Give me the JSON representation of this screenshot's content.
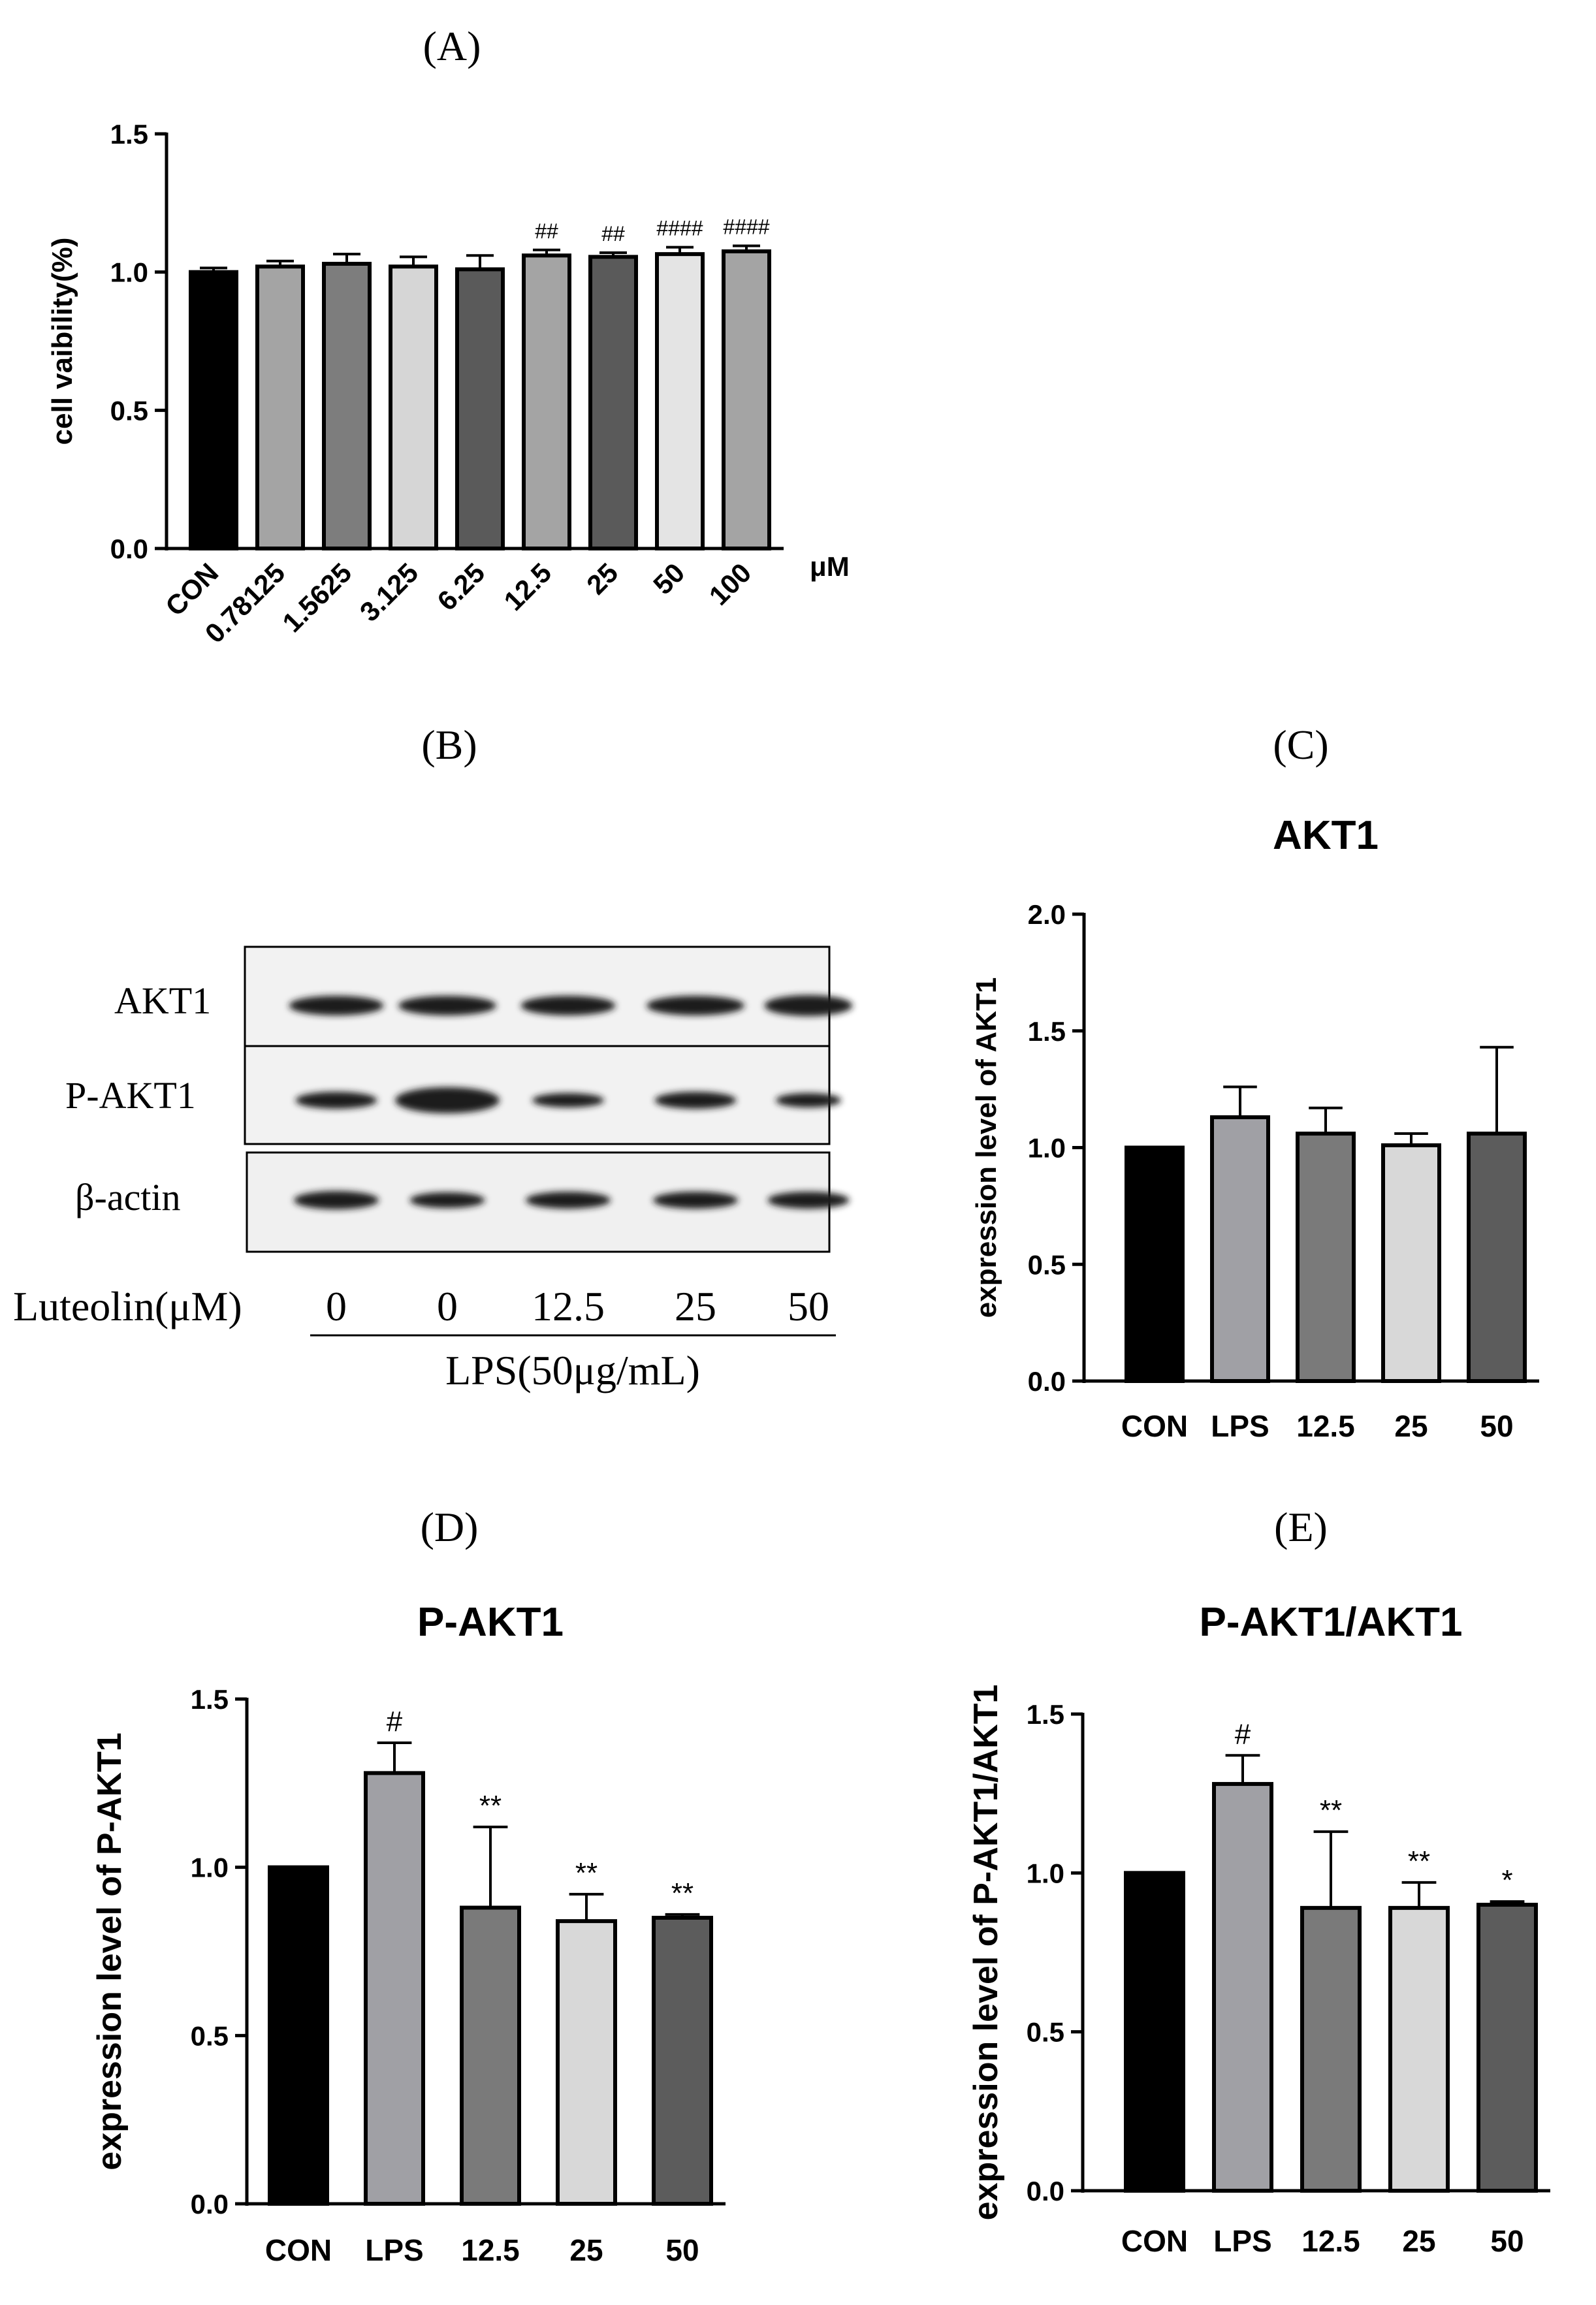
{
  "panels": {
    "A": {
      "letter": "(A)"
    },
    "B": {
      "letter": "(B)"
    },
    "C": {
      "letter": "(C)"
    },
    "D": {
      "letter": "(D)"
    },
    "E": {
      "letter": "(E)"
    }
  },
  "blot": {
    "rows": [
      "AKT1",
      "P-AKT1",
      "β-actin"
    ],
    "lane_label": "Luteolin(μM)",
    "lanes": [
      "0",
      "0",
      "12.5",
      "25",
      "50"
    ],
    "group_label": "LPS(50μg/mL)",
    "band_color": "#1e1e1e"
  },
  "chart_data": [
    {
      "id": "A",
      "type": "bar",
      "title": "",
      "ylabel": "cell vaibility(%)",
      "xunit": "μM",
      "ylim": [
        0,
        1.5
      ],
      "yticks": [
        "0.0",
        "0.5",
        "1.0",
        "1.5"
      ],
      "categories": [
        "CON",
        "0.78125",
        "1.5625",
        "3.125",
        "6.25",
        "12.5",
        "25",
        "50",
        "100"
      ],
      "values": [
        1.0,
        1.02,
        1.03,
        1.02,
        1.01,
        1.06,
        1.055,
        1.065,
        1.075
      ],
      "errors": [
        0.015,
        0.02,
        0.035,
        0.035,
        0.05,
        0.02,
        0.015,
        0.025,
        0.02
      ],
      "annotations": [
        "",
        "",
        "",
        "",
        "",
        "##",
        "##",
        "####",
        "####"
      ],
      "colors": [
        "#000000",
        "#a4a4a4",
        "#7d7d7d",
        "#d6d6d6",
        "#5a5a5a",
        "#a4a4a4",
        "#5a5a5a",
        "#e4e4e4",
        "#a4a4a4"
      ],
      "rotated_labels": true,
      "grid": false
    },
    {
      "id": "C",
      "type": "bar",
      "title": "AKT1",
      "ylabel": "expression level of AKT1",
      "ylim": [
        0,
        2.0
      ],
      "yticks": [
        "0.0",
        "0.5",
        "1.0",
        "1.5",
        "2.0"
      ],
      "categories": [
        "CON",
        "LPS",
        "12.5",
        "25",
        "50"
      ],
      "values": [
        1.0,
        1.13,
        1.06,
        1.01,
        1.06
      ],
      "errors": [
        0,
        0.13,
        0.11,
        0.05,
        0.37
      ],
      "annotations": [
        "",
        "",
        "",
        "",
        ""
      ],
      "colors": [
        "#000000",
        "#a0a0a5",
        "#7a7a7a",
        "#d8d8d8",
        "#5c5c5c"
      ],
      "rotated_labels": false,
      "grid": false
    },
    {
      "id": "D",
      "type": "bar",
      "title": "P-AKT1",
      "ylabel": "expression level of P-AKT1",
      "ylim": [
        0,
        1.5
      ],
      "yticks": [
        "0.0",
        "0.5",
        "1.0",
        "1.5"
      ],
      "categories": [
        "CON",
        "LPS",
        "12.5",
        "25",
        "50"
      ],
      "values": [
        1.0,
        1.28,
        0.88,
        0.84,
        0.85
      ],
      "errors": [
        0,
        0.09,
        0.24,
        0.08,
        0.01
      ],
      "annotations": [
        "",
        "#",
        "**",
        "**",
        "**"
      ],
      "colors": [
        "#000000",
        "#a0a0a5",
        "#7a7a7a",
        "#d8d8d8",
        "#5c5c5c"
      ],
      "rotated_labels": false,
      "grid": false
    },
    {
      "id": "E",
      "type": "bar",
      "title": "P-AKT1/AKT1",
      "ylabel": "expression level of P-AKT1/AKT1",
      "ylim": [
        0,
        1.5
      ],
      "yticks": [
        "0.0",
        "0.5",
        "1.0",
        "1.5"
      ],
      "categories": [
        "CON",
        "LPS",
        "12.5",
        "25",
        "50"
      ],
      "values": [
        1.0,
        1.28,
        0.89,
        0.89,
        0.9
      ],
      "errors": [
        0,
        0.09,
        0.24,
        0.08,
        0.01
      ],
      "annotations": [
        "",
        "#",
        "**",
        "**",
        "*"
      ],
      "colors": [
        "#000000",
        "#a0a0a5",
        "#7a7a7a",
        "#d8d8d8",
        "#5c5c5c"
      ],
      "rotated_labels": false,
      "grid": false
    }
  ]
}
